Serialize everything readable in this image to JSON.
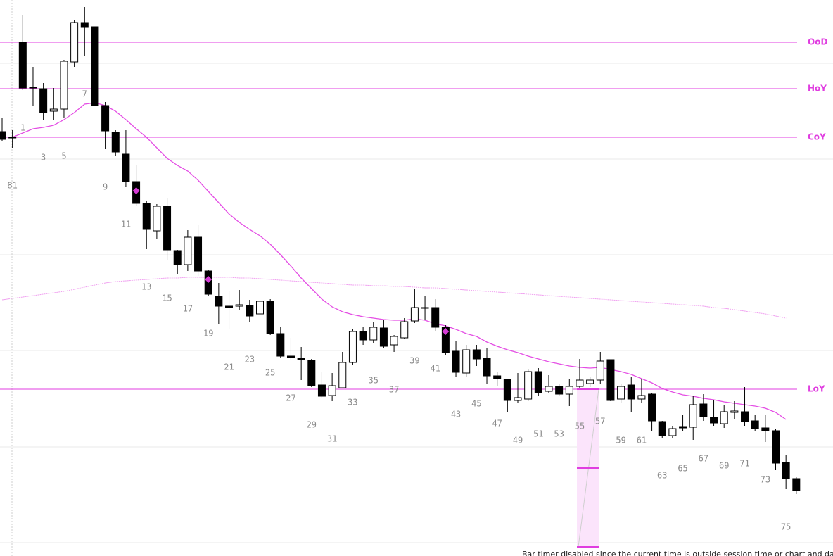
{
  "chart_data": {
    "type": "candlestick",
    "ylim": [
      0,
      790
    ],
    "up_color": "#ffffff",
    "down_color": "#000000",
    "level_color": "#e03ee0",
    "open": [
      603,
      595,
      730,
      666,
      664,
      632,
      635,
      702,
      758,
      752,
      640,
      602,
      571,
      532,
      501,
      462,
      497,
      434,
      414,
      453,
      405,
      369,
      355,
      355,
      356,
      344,
      362,
      316,
      284,
      281,
      278,
      243,
      228,
      239,
      275,
      319,
      307,
      324,
      300,
      310,
      334,
      352,
      353,
      325,
      291,
      260,
      293,
      281,
      256,
      251,
      221,
      223,
      262,
      234,
      241,
      230,
      241,
      245,
      250,
      279,
      223,
      243,
      223,
      230,
      191,
      171,
      184,
      183,
      216,
      197,
      188,
      204,
      205,
      192,
      182,
      178,
      133,
      110
    ],
    "high": [
      622,
      605,
      768,
      695,
      672,
      665,
      705,
      762,
      780,
      752,
      645,
      605,
      605,
      556,
      505,
      500,
      508,
      435,
      463,
      470,
      407,
      388,
      377,
      378,
      364,
      366,
      365,
      325,
      310,
      297,
      280,
      262,
      260,
      290,
      322,
      325,
      333,
      335,
      314,
      338,
      380,
      370,
      365,
      328,
      305,
      300,
      300,
      295,
      262,
      252,
      260,
      266,
      267,
      257,
      245,
      252,
      280,
      255,
      290,
      279,
      245,
      255,
      252,
      232,
      192,
      185,
      200,
      228,
      230,
      222,
      215,
      220,
      240,
      200,
      200,
      180,
      144,
      112
    ],
    "low": [
      590,
      580,
      662,
      640,
      620,
      620,
      622,
      695,
      710,
      640,
      578,
      568,
      525,
      498,
      436,
      450,
      420,
      400,
      405,
      398,
      370,
      330,
      322,
      350,
      333,
      306,
      314,
      281,
      278,
      250,
      240,
      225,
      220,
      238,
      272,
      300,
      303,
      296,
      290,
      308,
      331,
      335,
      320,
      285,
      255,
      255,
      270,
      245,
      242,
      205,
      218,
      220,
      227,
      232,
      227,
      213,
      238,
      240,
      245,
      220,
      218,
      205,
      218,
      178,
      168,
      168,
      178,
      165,
      192,
      185,
      182,
      195,
      185,
      178,
      162,
      122,
      95,
      88
    ],
    "close": [
      592,
      594,
      665,
      665,
      630,
      635,
      703,
      758,
      751,
      640,
      604,
      574,
      532,
      501,
      464,
      497,
      435,
      414,
      453,
      405,
      372,
      355,
      353,
      357,
      341,
      362,
      316,
      284,
      282,
      279,
      242,
      227,
      242,
      275,
      319,
      307,
      325,
      298,
      312,
      333,
      353,
      353,
      325,
      289,
      261,
      293,
      280,
      256,
      252,
      221,
      225,
      262,
      232,
      241,
      230,
      241,
      250,
      250,
      277,
      221,
      241,
      223,
      228,
      192,
      171,
      181,
      182,
      215,
      198,
      189,
      205,
      206,
      191,
      181,
      178,
      132,
      110,
      93
    ],
    "bar_labels": [
      null,
      81,
      1,
      null,
      3,
      null,
      5,
      null,
      7,
      null,
      9,
      null,
      11,
      null,
      13,
      null,
      15,
      null,
      17,
      null,
      19,
      null,
      21,
      null,
      23,
      null,
      25,
      null,
      27,
      null,
      29,
      null,
      31,
      null,
      33,
      null,
      35,
      null,
      37,
      null,
      39,
      null,
      41,
      null,
      43,
      null,
      45,
      null,
      47,
      null,
      49,
      null,
      51,
      null,
      53,
      null,
      55,
      null,
      57,
      null,
      59,
      null,
      61,
      null,
      63,
      null,
      65,
      null,
      67,
      null,
      69,
      null,
      71,
      null,
      73,
      null,
      75,
      null
    ],
    "lines": [
      {
        "color": "#e44ee4",
        "dashed": false,
        "values": [
          null,
          595,
          601,
          607,
          609,
          612,
          620,
          630,
          642,
          644,
          640,
          632,
          620,
          607,
          595,
          580,
          565,
          555,
          547,
          534,
          518,
          502,
          486,
          474,
          464,
          455,
          443,
          428,
          412,
          395,
          380,
          365,
          354,
          347,
          343,
          340,
          338,
          336,
          335,
          335,
          337,
          335,
          330,
          327,
          322,
          316,
          312,
          304,
          298,
          293,
          289,
          284,
          280,
          276,
          273,
          270,
          268,
          267,
          268,
          265,
          262,
          258,
          252,
          246,
          238,
          233,
          229,
          227,
          224,
          222,
          219,
          217,
          215,
          213,
          210,
          204,
          194,
          null
        ]
      },
      {
        "color": "#f0a0f0",
        "dashed": true,
        "values": [
          364,
          366,
          368,
          370,
          372,
          374,
          376,
          379,
          382,
          385,
          388,
          390,
          391,
          392,
          393,
          394,
          395,
          395,
          396,
          396,
          396,
          396,
          396,
          395,
          395,
          394,
          393,
          392,
          391,
          390,
          389,
          388,
          387,
          386,
          385,
          385,
          384,
          384,
          383,
          383,
          382,
          381,
          381,
          380,
          379,
          378,
          377,
          376,
          375,
          374,
          373,
          372,
          371,
          370,
          369,
          368,
          367,
          366,
          365,
          364,
          363,
          362,
          361,
          360,
          359,
          358,
          357,
          356,
          355,
          353,
          352,
          350,
          348,
          346,
          344,
          341,
          338,
          null
        ]
      }
    ],
    "levels": [
      {
        "label": "OoD",
        "value": 730
      },
      {
        "label": "HoY",
        "value": 664
      },
      {
        "label": "CoY",
        "value": 595
      },
      {
        "label": "LoY",
        "value": 237
      }
    ],
    "markers": {
      "color": "#d63bd6",
      "x": [
        13,
        20,
        43
      ],
      "values": [
        519,
        393,
        319
      ]
    },
    "footer": "Bar timer disabled since the current time is outside session time or chart and data"
  }
}
